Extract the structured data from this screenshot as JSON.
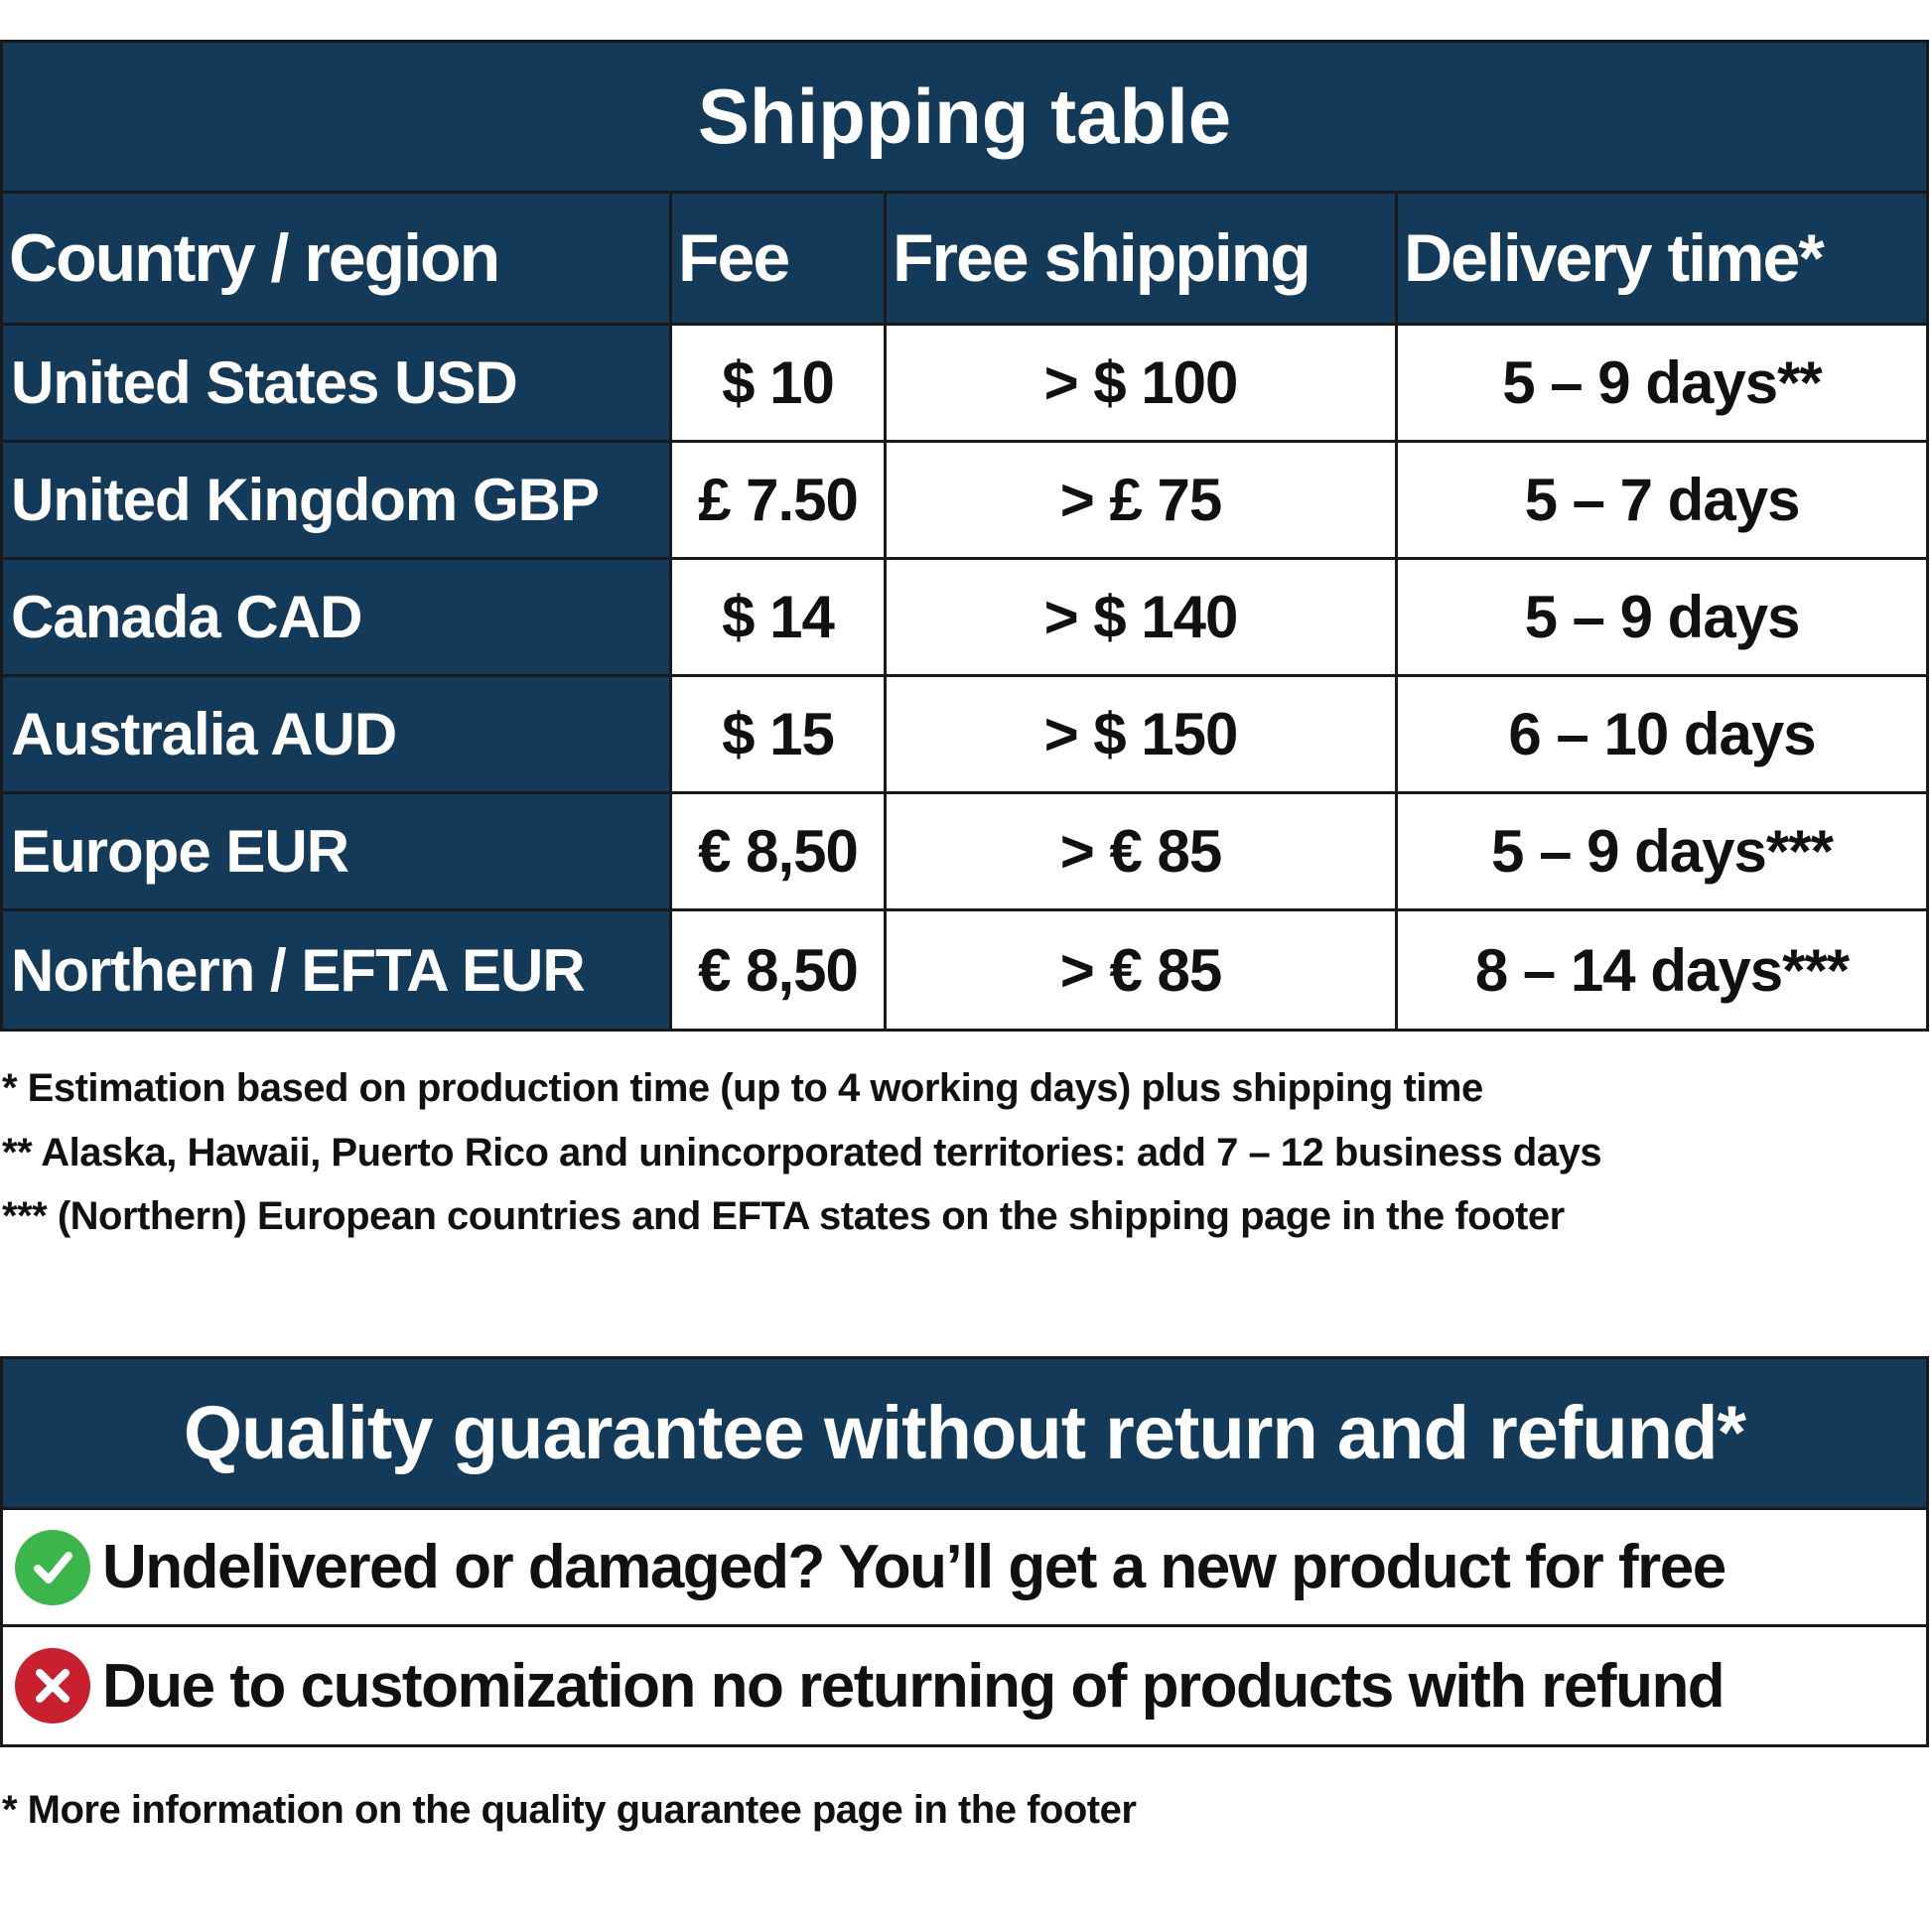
{
  "shipping": {
    "title": "Shipping table",
    "headers": [
      "Country / region",
      "Fee",
      "Free shipping",
      "Delivery time*"
    ],
    "rows": [
      [
        "United States USD",
        "$ 10",
        "> $ 100",
        "5 – 9 days**"
      ],
      [
        "United Kingdom GBP",
        "£ 7.50",
        "> £ 75",
        "5 – 7 days"
      ],
      [
        "Canada CAD",
        "$ 14",
        "> $ 140",
        "5 – 9 days"
      ],
      [
        "Australia AUD",
        "$ 15",
        "> $ 150",
        "6 – 10 days"
      ],
      [
        "Europe EUR",
        "€ 8,50",
        "> € 85",
        "5 – 9 days***"
      ],
      [
        "Northern / EFTA EUR",
        "€ 8,50",
        "> € 85",
        "8 – 14 days***"
      ]
    ],
    "footnotes": [
      "* Estimation based on production time (up to 4 working days) plus shipping time",
      "** Alaska, Hawaii, Puerto Rico and unincorporated territories: add 7 – 12 business days",
      "*** (Northern) European countries and EFTA states on the shipping page in the footer"
    ]
  },
  "quality": {
    "title": "Quality guarantee without return and refund*",
    "items": [
      {
        "icon": "check-circle-icon",
        "color": "#3cb54a",
        "text": "Undelivered or damaged? You’ll get a new product for free"
      },
      {
        "icon": "x-circle-icon",
        "color": "#c8202f",
        "text": "Due to customization no returning of products with refund"
      }
    ],
    "footnote": "* More information on the quality guarantee page in the footer"
  },
  "colors": {
    "header_bg": "#143a5a"
  }
}
